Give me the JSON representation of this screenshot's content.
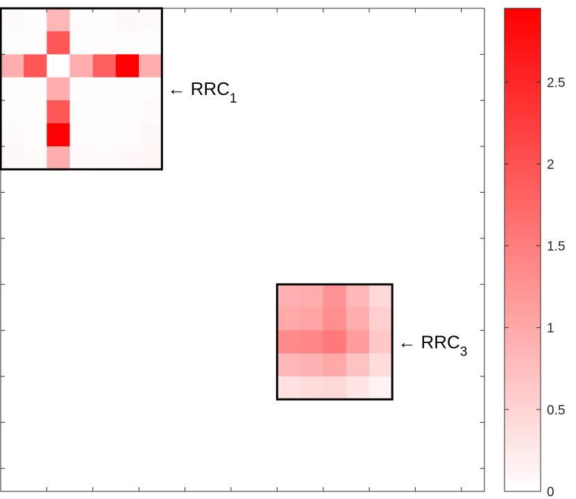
{
  "chart_data": {
    "type": "heatmap",
    "title": "",
    "xlabel": "",
    "ylabel": "",
    "grid": false,
    "matrix_size": 21,
    "colormap": {
      "low": "#ffffff",
      "high": "#ff0000"
    },
    "colorbar": {
      "range": [
        0,
        2.95
      ],
      "ticks": [
        0,
        0.5,
        1,
        1.5,
        2,
        2.5
      ],
      "tick_labels": [
        "0",
        "0.5",
        "1",
        "1.5",
        "2",
        "2.5"
      ]
    },
    "blocks": [
      {
        "label": "RRC",
        "subscript": "1",
        "arrow": "←",
        "row_start": 0,
        "col_start": 0,
        "values": [
          [
            0.05,
            0.02,
            0.85,
            0.03,
            0.03,
            0.08,
            0.05
          ],
          [
            0.04,
            0.02,
            1.95,
            0.02,
            0.03,
            0.03,
            0.04
          ],
          [
            0.95,
            1.95,
            0.0,
            0.95,
            1.85,
            2.95,
            0.95
          ],
          [
            0.03,
            0.03,
            0.95,
            0.02,
            0.02,
            0.02,
            0.03
          ],
          [
            0.04,
            0.03,
            1.95,
            0.03,
            0.03,
            0.03,
            0.05
          ],
          [
            0.05,
            0.03,
            2.95,
            0.03,
            0.03,
            0.03,
            0.08
          ],
          [
            0.08,
            0.05,
            0.95,
            0.06,
            0.05,
            0.08,
            0.1
          ]
        ]
      },
      {
        "label": "RRC",
        "subscript": "3",
        "arrow": "←",
        "row_start": 12,
        "col_start": 12,
        "values": [
          [
            0.9,
            0.95,
            1.25,
            0.85,
            0.45
          ],
          [
            1.0,
            1.05,
            1.3,
            0.95,
            0.55
          ],
          [
            1.35,
            1.4,
            1.55,
            1.15,
            0.65
          ],
          [
            0.85,
            0.9,
            1.0,
            0.7,
            0.4
          ],
          [
            0.35,
            0.4,
            0.45,
            0.3,
            0.15
          ]
        ]
      }
    ]
  }
}
